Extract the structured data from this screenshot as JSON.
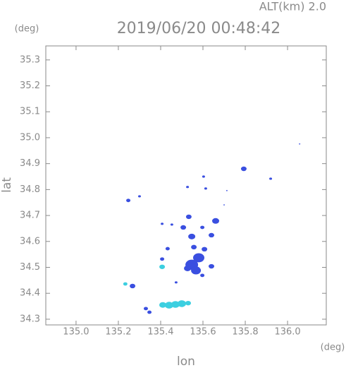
{
  "chart_data": {
    "type": "scatter",
    "title": "2019/06/20 00:48:42",
    "altitude_label": "ALT(km) 2.0",
    "y_unit": "(deg)",
    "x_unit": "(deg)",
    "x_label": "lon",
    "y_label": "lat",
    "xlim": [
      134.857,
      136.183
    ],
    "ylim": [
      34.278,
      35.354
    ],
    "xticks": [
      {
        "value": 135.0,
        "label": "135.0"
      },
      135.2,
      135.4,
      135.6,
      135.8,
      {
        "value": 136.0,
        "label": "136.0"
      }
    ],
    "yticks": [
      34.3,
      34.4,
      34.5,
      34.6,
      34.7,
      34.8,
      34.9,
      {
        "value": 35.0,
        "label": "35.0"
      },
      35.1,
      35.2,
      35.3
    ],
    "x": [
      136.057,
      135.793,
      135.92,
      135.603,
      135.713,
      135.527,
      135.613,
      135.3,
      135.247,
      135.7,
      135.533,
      135.66,
      135.507,
      135.407,
      135.453,
      135.597,
      135.547,
      135.64,
      135.433,
      135.557,
      135.607,
      135.58,
      135.547,
      135.567,
      135.64,
      135.527,
      135.407,
      135.407,
      135.597,
      135.233,
      135.267,
      135.473,
      135.33,
      135.347,
      135.41,
      135.44,
      135.47,
      135.5,
      135.53
    ],
    "values": [
      34.976,
      34.88,
      34.842,
      34.85,
      34.796,
      34.81,
      34.804,
      34.774,
      34.758,
      34.741,
      34.695,
      34.679,
      34.654,
      34.668,
      34.665,
      34.654,
      34.619,
      34.624,
      34.572,
      34.578,
      34.57,
      34.537,
      34.51,
      34.488,
      34.504,
      34.496,
      34.502,
      34.532,
      34.469,
      34.436,
      34.428,
      34.442,
      34.341,
      34.327,
      34.355,
      34.354,
      34.357,
      34.36,
      34.362
    ],
    "point_colors": [
      "#3a4fe0",
      "#3a4fe0",
      "#3a4fe0",
      "#3a4fe0",
      "#3a4fe0",
      "#3a4fe0",
      "#3a4fe0",
      "#3a4fe0",
      "#3a4fe0",
      "#3a4fe0",
      "#3a4fe0",
      "#3a4fe0",
      "#3a4fe0",
      "#3a4fe0",
      "#3a4fe0",
      "#3a4fe0",
      "#3a4fe0",
      "#3a4fe0",
      "#3a4fe0",
      "#3a4fe0",
      "#3a4fe0",
      "#3a4fe0",
      "#3a4fe0",
      "#3a4fe0",
      "#3a4fe0",
      "#3a4fe0",
      "#3ccfe0",
      "#3a4fe0",
      "#3a4fe0",
      "#3ccfe0",
      "#3a4fe0",
      "#3a4fe0",
      "#3a4fe0",
      "#3a4fe0",
      "#3ccfe0",
      "#3ccfe0",
      "#3ccfe0",
      "#3ccfe0",
      "#3ccfe0"
    ],
    "point_sizes": [
      1,
      4,
      2,
      2,
      1,
      2,
      2,
      2,
      3,
      1,
      4,
      5,
      4,
      2,
      2,
      3,
      5,
      4,
      3,
      4,
      4,
      8,
      9,
      7,
      4,
      5,
      4,
      3,
      3,
      3,
      4,
      2,
      3,
      3,
      5,
      6,
      6,
      6,
      4
    ]
  }
}
